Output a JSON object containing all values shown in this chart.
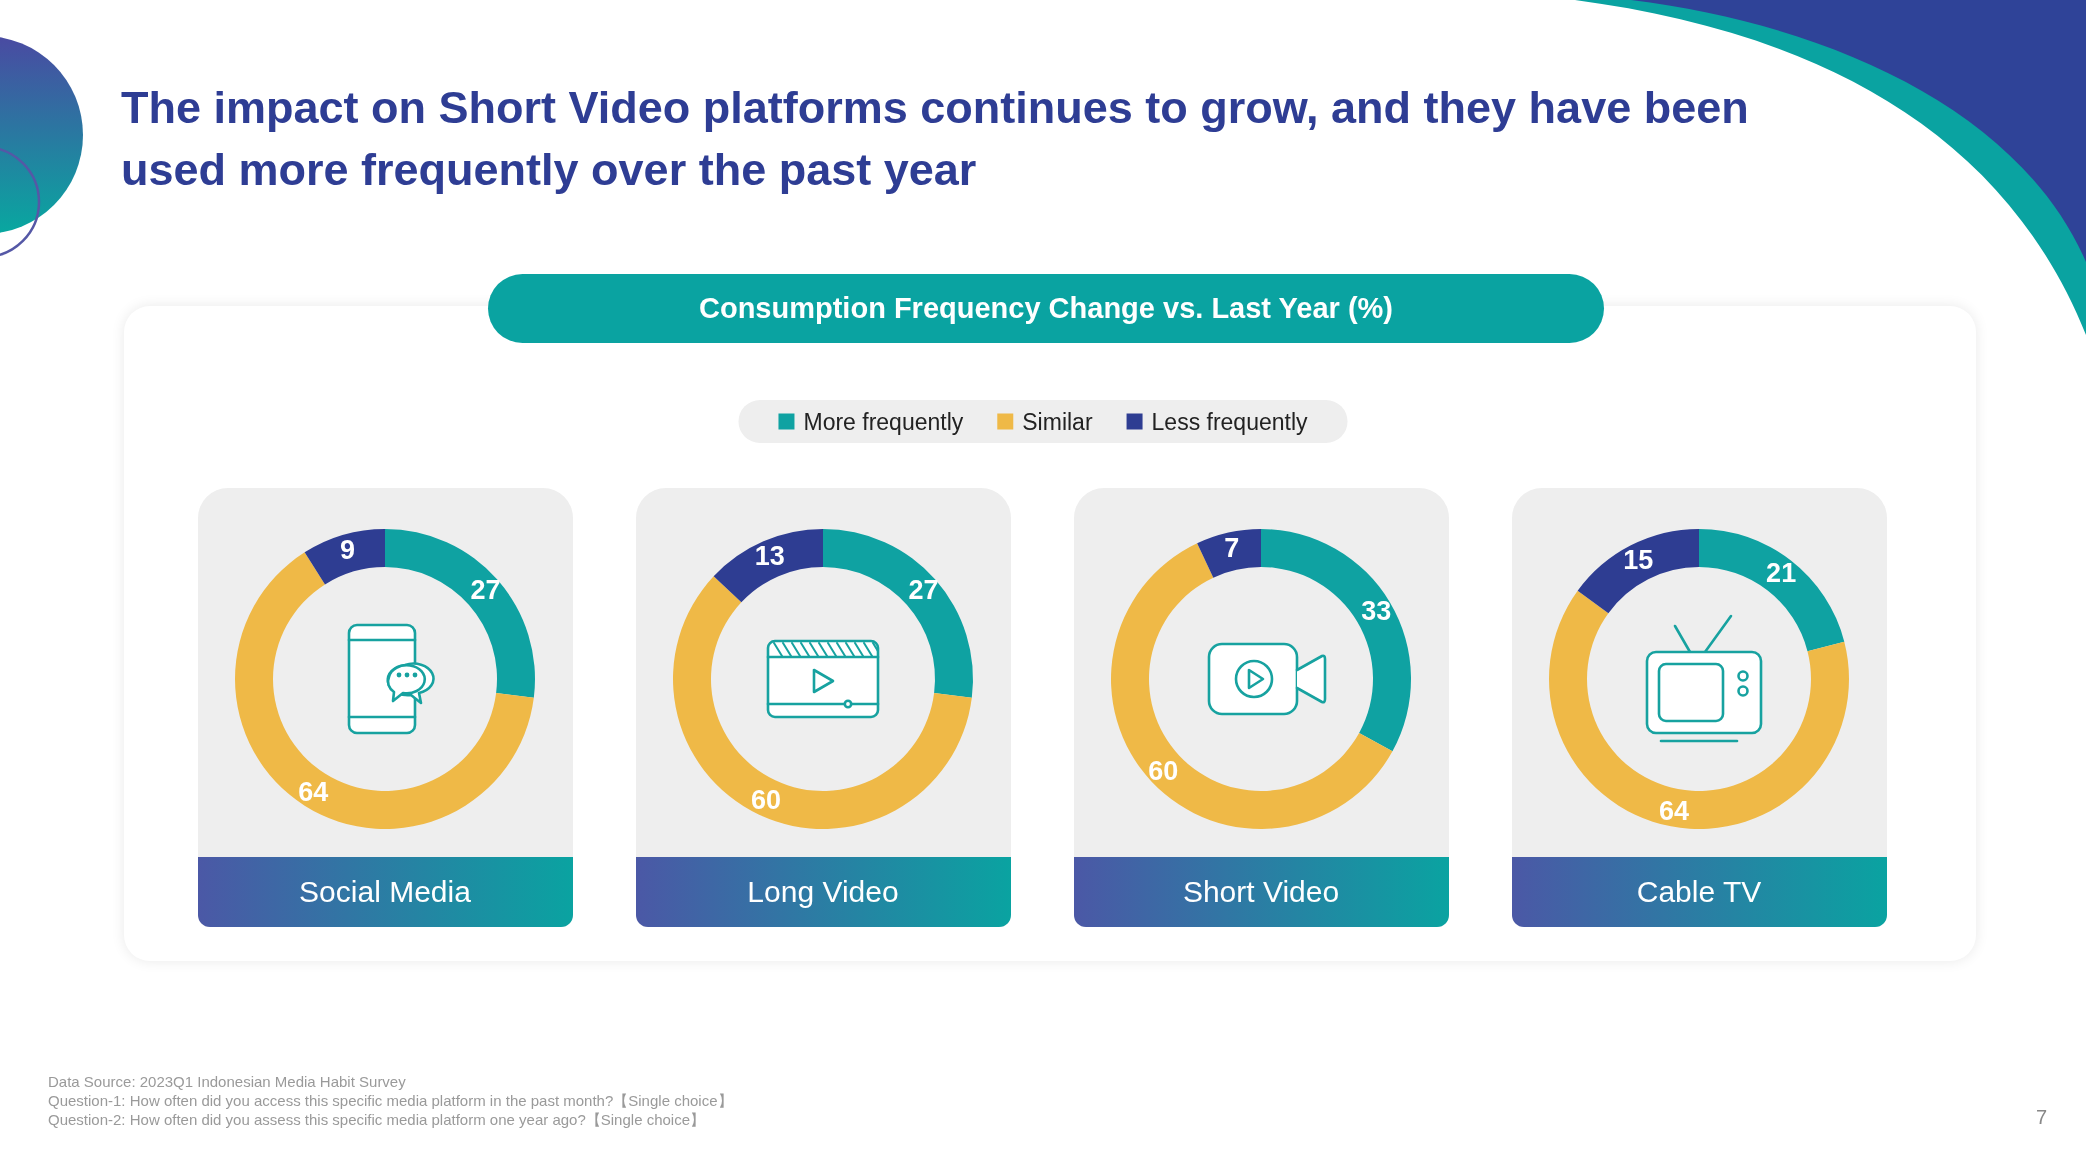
{
  "chart_data": {
    "type": "donut",
    "title": "The impact on Short Video platforms continues to grow, and they have been used more frequently over the past year",
    "subtitle": "Consumption Frequency Change vs. Last Year (%)",
    "categories": [
      "More frequently",
      "Similar",
      "Less frequently"
    ],
    "colors": [
      "#0fa2a2",
      "#efb947",
      "#2e3d92"
    ],
    "series": [
      {
        "name": "Social Media",
        "values": [
          27,
          64,
          9
        ]
      },
      {
        "name": "Long Video",
        "values": [
          27,
          60,
          13
        ]
      },
      {
        "name": "Short Video",
        "values": [
          33,
          60,
          7
        ]
      },
      {
        "name": "Cable TV",
        "values": [
          21,
          64,
          15
        ]
      }
    ],
    "legend": "top",
    "data_labels": true,
    "annotations": [
      "Data Source: 2023Q1 Indonesian Media Habit Survey",
      "Question-1: How often did you access this specific media platform in the past month?【Single choice】",
      "Question-2: How often did you assess this specific media platform one year ago?【Single choice】",
      "7"
    ]
  }
}
